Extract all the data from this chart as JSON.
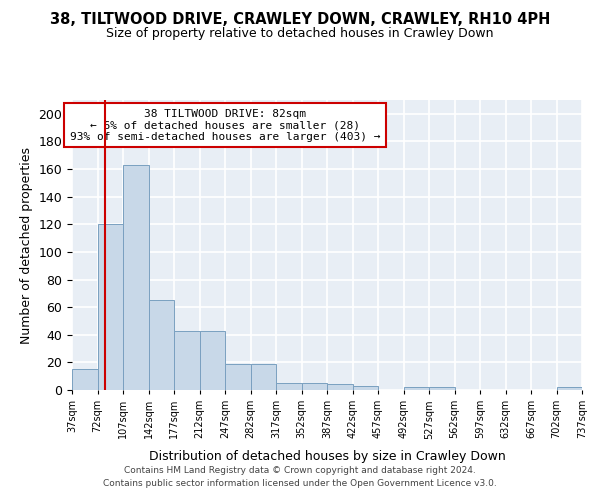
{
  "title": "38, TILTWOOD DRIVE, CRAWLEY DOWN, CRAWLEY, RH10 4PH",
  "subtitle": "Size of property relative to detached houses in Crawley Down",
  "xlabel": "Distribution of detached houses by size in Crawley Down",
  "ylabel": "Number of detached properties",
  "bar_color": "#c8d8e8",
  "bar_edge_color": "#7aa0c0",
  "background_color": "#e8eef5",
  "grid_color": "#ffffff",
  "bin_edges": [
    37,
    72,
    107,
    142,
    177,
    212,
    247,
    282,
    317,
    352,
    387,
    422,
    457,
    492,
    527,
    562,
    597,
    632,
    667,
    702,
    737
  ],
  "counts": [
    15,
    120,
    163,
    65,
    43,
    43,
    19,
    19,
    5,
    5,
    4,
    3,
    0,
    2,
    2,
    0,
    0,
    0,
    0,
    2
  ],
  "tick_labels": [
    "37sqm",
    "72sqm",
    "107sqm",
    "142sqm",
    "177sqm",
    "212sqm",
    "247sqm",
    "282sqm",
    "317sqm",
    "352sqm",
    "387sqm",
    "422sqm",
    "457sqm",
    "492sqm",
    "527sqm",
    "562sqm",
    "597sqm",
    "632sqm",
    "667sqm",
    "702sqm",
    "737sqm"
  ],
  "property_size": 82,
  "property_line_color": "#cc0000",
  "annotation_title": "38 TILTWOOD DRIVE: 82sqm",
  "annotation_line1": "← 6% of detached houses are smaller (28)",
  "annotation_line2": "93% of semi-detached houses are larger (403) →",
  "annotation_box_color": "#ffffff",
  "annotation_box_edge": "#cc0000",
  "ylim": [
    0,
    210
  ],
  "yticks": [
    0,
    20,
    40,
    60,
    80,
    100,
    120,
    140,
    160,
    180,
    200
  ],
  "footer_line1": "Contains HM Land Registry data © Crown copyright and database right 2024.",
  "footer_line2": "Contains public sector information licensed under the Open Government Licence v3.0."
}
